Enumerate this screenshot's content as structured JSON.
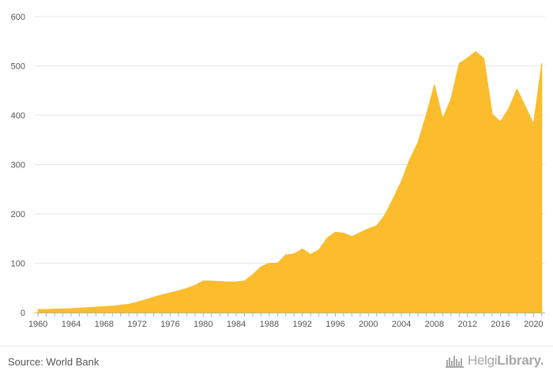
{
  "chart_data": {
    "type": "area",
    "title": "",
    "xlabel": "",
    "ylabel": "",
    "ylim": [
      0,
      600
    ],
    "yticks": [
      0,
      100,
      200,
      300,
      400,
      500,
      600
    ],
    "xlim": [
      1960,
      2021
    ],
    "xticks": [
      1960,
      1964,
      1968,
      1972,
      1976,
      1980,
      1984,
      1988,
      1992,
      1996,
      2000,
      2004,
      2008,
      2012,
      2016,
      2020
    ],
    "grid": true,
    "color": "#fbbc2d",
    "x": [
      1960,
      1961,
      1962,
      1963,
      1964,
      1965,
      1966,
      1967,
      1968,
      1969,
      1970,
      1971,
      1972,
      1973,
      1974,
      1975,
      1976,
      1977,
      1978,
      1979,
      1980,
      1981,
      1982,
      1983,
      1984,
      1985,
      1986,
      1987,
      1988,
      1989,
      1990,
      1991,
      1992,
      1993,
      1994,
      1995,
      1996,
      1997,
      1998,
      1999,
      2000,
      2001,
      2002,
      2003,
      2004,
      2005,
      2006,
      2007,
      2008,
      2009,
      2010,
      2011,
      2012,
      2013,
      2014,
      2015,
      2016,
      2017,
      2018,
      2019,
      2020,
      2021
    ],
    "values": [
      6,
      6.5,
      7,
      7.5,
      8,
      9,
      10,
      11,
      12,
      13,
      15,
      17,
      21,
      26,
      31,
      36,
      40,
      44,
      49,
      55,
      64,
      64,
      63,
      62,
      62,
      64,
      77,
      93,
      100,
      100,
      117,
      119,
      129,
      118,
      127,
      151,
      163,
      161,
      154,
      162,
      170,
      176,
      198,
      231,
      266,
      310,
      345,
      400,
      462,
      393,
      433,
      505,
      516,
      529,
      515,
      402,
      387,
      414,
      453,
      418,
      382,
      505
    ]
  },
  "footer": {
    "source": "Source: World Bank",
    "brand_part1": "Helgi",
    "brand_part2": "Library."
  }
}
